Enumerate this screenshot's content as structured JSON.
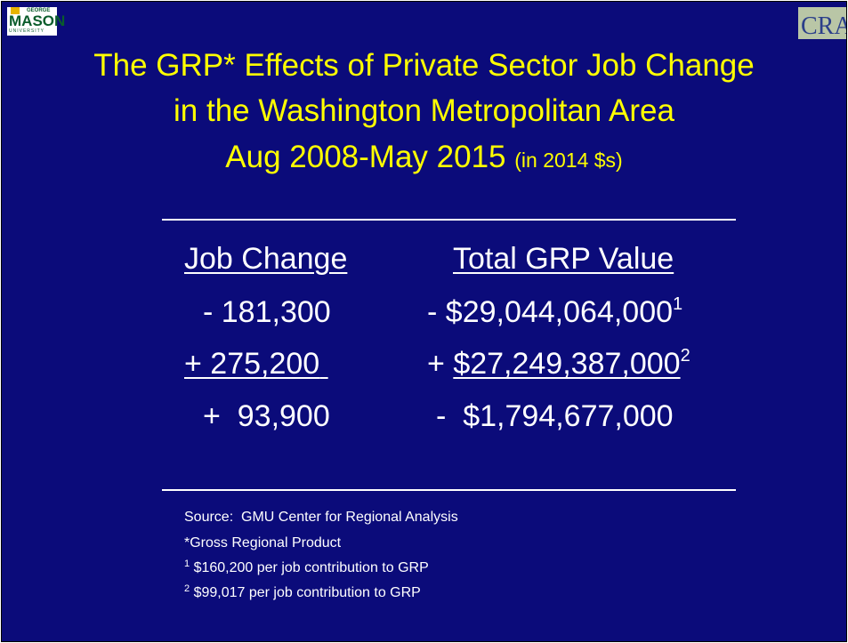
{
  "logos": {
    "left": {
      "top": "GEORGE",
      "main": "MASON",
      "bottom": "UNIVERSITY"
    },
    "right": "CRA"
  },
  "title": {
    "line1": "The GRP* Effects of Private Sector Job Change",
    "line2": "in the Washington Metropolitan Area",
    "line3": "Aug 2008-May 2015",
    "unit": "(in 2014 $s)"
  },
  "table": {
    "headers": [
      "Job Change",
      "Total GRP Value"
    ],
    "rows": [
      {
        "job": "- 181,300",
        "sign": "-",
        "amount": "$29,044,064,000",
        "note": "1"
      },
      {
        "job": "+ 275,200",
        "sign": "+",
        "amount": "$27,249,387,000",
        "note": "2"
      },
      {
        "job": "+  93,900",
        "sign": "-",
        "amount": "$1,794,677,000"
      }
    ]
  },
  "notes": {
    "source": "Source:  GMU Center for Regional Analysis",
    "definition": "*Gross Regional Product",
    "footnotes": [
      {
        "mark": "1",
        "text": "$160,200 per job contribution to GRP"
      },
      {
        "mark": "2",
        "text": "$99,017 per job contribution to GRP"
      }
    ]
  }
}
